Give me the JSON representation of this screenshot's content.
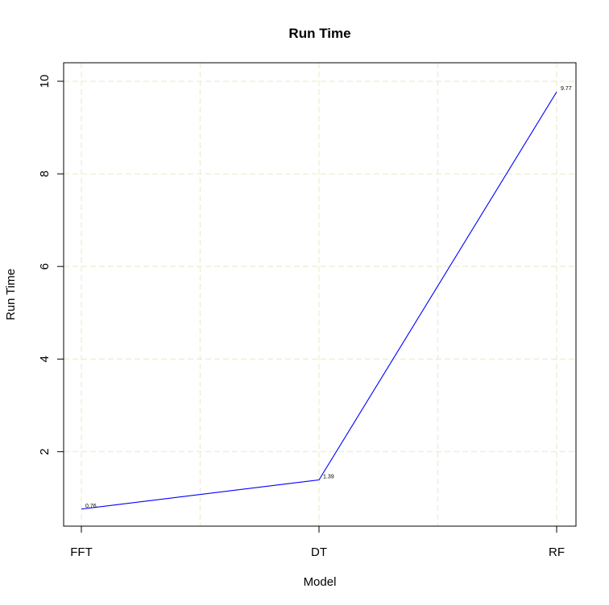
{
  "chart_data": {
    "type": "line",
    "title": "Run Time",
    "xlabel": "Model",
    "ylabel": "Run Time",
    "categories": [
      "FFT",
      "DT",
      "RF"
    ],
    "series": [
      {
        "values": [
          0.76,
          1.39,
          9.77
        ],
        "color": "#0000ff"
      }
    ],
    "data_labels": [
      "0.76",
      "1.39",
      "9.77"
    ],
    "yticks": [
      2,
      4,
      6,
      8,
      10
    ],
    "ylim": [
      0.42,
      10.4
    ],
    "grid": true,
    "grid_color": "#ededd6",
    "vertical_grid_x": [
      0,
      0.5,
      1,
      1.5,
      2
    ]
  }
}
